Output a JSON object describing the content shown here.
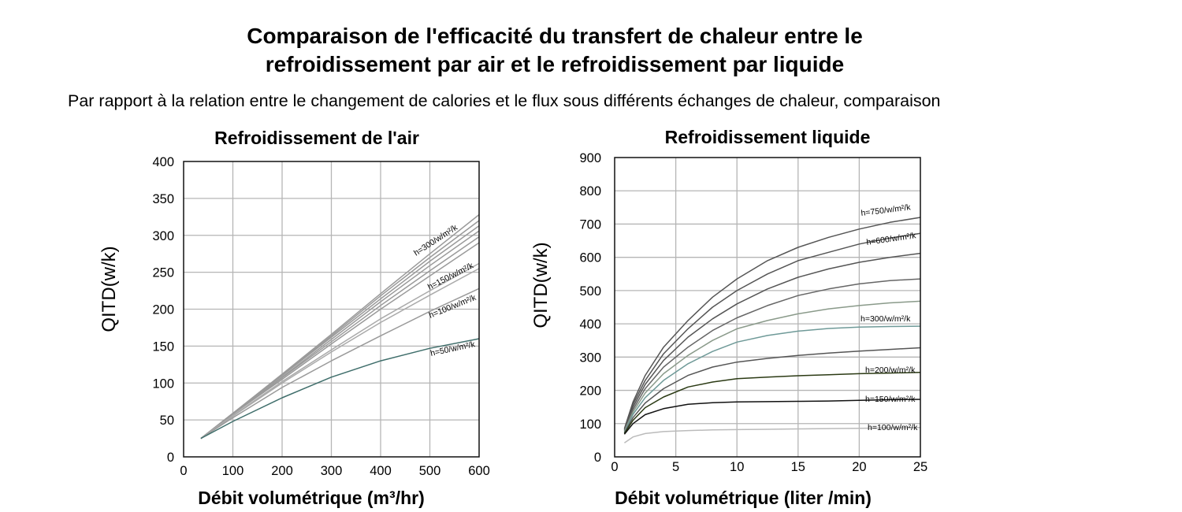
{
  "title_line1": "Comparaison de l'efficacité du transfert de chaleur entre le",
  "title_line2": "refroidissement par air et le refroidissement par liquide",
  "subtitle": "Par rapport à la relation entre le changement de calories et le flux sous différents échanges de chaleur, comparaison",
  "chart_data": [
    {
      "type": "line",
      "title": "Refroidissement de l'air",
      "xlabel": "Débit volumétrique (m³/hr)",
      "ylabel": "QITD(w/k)",
      "xlim": [
        0,
        600
      ],
      "ylim": [
        0,
        400
      ],
      "xticks": [
        0,
        100,
        200,
        300,
        400,
        500,
        600
      ],
      "yticks": [
        0,
        50,
        100,
        150,
        200,
        250,
        300,
        350,
        400
      ],
      "grid": true,
      "curve_labels": [
        "h=300/w/m²/k",
        "h=150/w/m²/k",
        "h=100/w/m²/k",
        "h=50/w/m²/k"
      ],
      "series": [
        {
          "color": "#9a9a9a",
          "x": [
            35,
            100,
            200,
            300,
            400,
            500,
            600
          ],
          "y": [
            25,
            58,
            105,
            153,
            200,
            245,
            290
          ]
        },
        {
          "color": "#9a9a9a",
          "x": [
            35,
            100,
            200,
            300,
            400,
            500,
            600
          ],
          "y": [
            25,
            58,
            107,
            156,
            205,
            252,
            298
          ]
        },
        {
          "color": "#9a9a9a",
          "x": [
            35,
            100,
            200,
            300,
            400,
            500,
            600
          ],
          "y": [
            25,
            58,
            108,
            159,
            210,
            259,
            306
          ]
        },
        {
          "color": "#9a9a9a",
          "x": [
            35,
            100,
            200,
            300,
            400,
            500,
            600
          ],
          "y": [
            25,
            59,
            110,
            162,
            214,
            265,
            313
          ]
        },
        {
          "color": "#9a9a9a",
          "x": [
            35,
            100,
            200,
            300,
            400,
            500,
            600
          ],
          "y": [
            25,
            59,
            111,
            164,
            218,
            270,
            320
          ]
        },
        {
          "color": "#9a9a9a",
          "x": [
            35,
            100,
            200,
            300,
            400,
            500,
            600
          ],
          "y": [
            25,
            59,
            112,
            166,
            221,
            275,
            328
          ]
        },
        {
          "color": "#aaaaaa",
          "x": [
            35,
            100,
            200,
            300,
            400,
            500,
            600
          ],
          "y": [
            25,
            56,
            102,
            145,
            187,
            225,
            262
          ]
        },
        {
          "color": "#aaaaaa",
          "x": [
            35,
            100,
            200,
            300,
            400,
            500,
            600
          ],
          "y": [
            25,
            55,
            100,
            142,
            182,
            219,
            255
          ]
        },
        {
          "color": "#9a9a9a",
          "x": [
            35,
            100,
            200,
            300,
            400,
            500,
            600
          ],
          "y": [
            25,
            53,
            94,
            130,
            164,
            197,
            228
          ]
        },
        {
          "color": "#3f6e6b",
          "x": [
            35,
            100,
            200,
            300,
            400,
            500,
            600
          ],
          "y": [
            25,
            48,
            80,
            108,
            130,
            147,
            160
          ]
        }
      ]
    },
    {
      "type": "line",
      "title": "Refroidissement liquide",
      "xlabel": "Débit volumétrique (liter /min)",
      "ylabel": "QITD(w/k)",
      "xlim": [
        0,
        25
      ],
      "ylim": [
        0,
        900
      ],
      "xticks": [
        0,
        5,
        10,
        15,
        20,
        25
      ],
      "yticks": [
        0,
        100,
        200,
        300,
        400,
        500,
        600,
        700,
        800,
        900
      ],
      "grid": true,
      "curve_labels": [
        "h=750/w/m²/k",
        "h=600/w/m²/k",
        "h=300/w/m²/k",
        "h=200/w/m²/k",
        "h=150/w/m²/k",
        "h=100/w/m²/k"
      ],
      "series": [
        {
          "color": "#555555",
          "x": [
            0.8,
            1.5,
            2.5,
            4,
            6,
            8,
            10,
            12.5,
            15,
            17.5,
            20,
            22.5,
            25
          ],
          "y": [
            85,
            165,
            245,
            330,
            410,
            480,
            535,
            590,
            630,
            660,
            685,
            705,
            720
          ]
        },
        {
          "color": "#555555",
          "x": [
            0.8,
            1.5,
            2.5,
            4,
            6,
            8,
            10,
            12.5,
            15,
            17.5,
            20,
            22.5,
            25
          ],
          "y": [
            82,
            158,
            230,
            310,
            385,
            450,
            500,
            550,
            590,
            615,
            640,
            658,
            672
          ]
        },
        {
          "color": "#555555",
          "x": [
            0.8,
            1.5,
            2.5,
            4,
            6,
            8,
            10,
            12.5,
            15,
            17.5,
            20,
            22.5,
            25
          ],
          "y": [
            80,
            150,
            218,
            290,
            360,
            415,
            460,
            505,
            540,
            565,
            585,
            600,
            612
          ]
        },
        {
          "color": "#666666",
          "x": [
            0.8,
            1.5,
            2.5,
            4,
            6,
            8,
            10,
            12.5,
            15,
            17.5,
            20,
            22.5,
            25
          ],
          "y": [
            78,
            142,
            205,
            270,
            330,
            380,
            418,
            455,
            485,
            505,
            520,
            530,
            535
          ]
        },
        {
          "color": "#8a9a8a",
          "x": [
            0.8,
            1.5,
            2.5,
            4,
            6,
            8,
            10,
            12.5,
            15,
            17.5,
            20,
            22.5,
            25
          ],
          "y": [
            76,
            135,
            192,
            250,
            305,
            350,
            385,
            410,
            430,
            445,
            455,
            463,
            468
          ]
        },
        {
          "color": "#6f9a98",
          "x": [
            0.8,
            1.5,
            2.5,
            4,
            6,
            8,
            10,
            12.5,
            15,
            17.5,
            20,
            22.5,
            25
          ],
          "y": [
            74,
            128,
            178,
            230,
            280,
            317,
            345,
            365,
            378,
            386,
            390,
            392,
            393
          ]
        },
        {
          "color": "#555555",
          "x": [
            0.8,
            1.5,
            2.5,
            4,
            6,
            8,
            10,
            12.5,
            15,
            17.5,
            20,
            22.5,
            25
          ],
          "y": [
            72,
            118,
            162,
            205,
            245,
            270,
            285,
            296,
            305,
            312,
            318,
            323,
            328
          ]
        },
        {
          "color": "#2b3a14",
          "x": [
            0.8,
            1.5,
            2.5,
            4,
            6,
            8,
            10,
            12.5,
            15,
            17.5,
            20,
            22.5,
            25
          ],
          "y": [
            70,
            110,
            148,
            180,
            210,
            225,
            235,
            240,
            244,
            247,
            250,
            252,
            254
          ]
        },
        {
          "color": "#111111",
          "x": [
            0.8,
            1.5,
            2.5,
            4,
            6,
            8,
            10,
            12.5,
            15,
            17.5,
            20,
            22.5,
            25
          ],
          "y": [
            68,
            100,
            127,
            145,
            158,
            163,
            165,
            166,
            167,
            168,
            170,
            172,
            173
          ]
        },
        {
          "color": "#bbbbbb",
          "x": [
            0.8,
            1.5,
            2.5,
            4,
            6,
            8,
            10,
            12.5,
            15,
            17.5,
            20,
            22.5,
            25
          ],
          "y": [
            42,
            60,
            70,
            76,
            79,
            81,
            82,
            83,
            84,
            85,
            86,
            87,
            88
          ]
        }
      ]
    }
  ]
}
